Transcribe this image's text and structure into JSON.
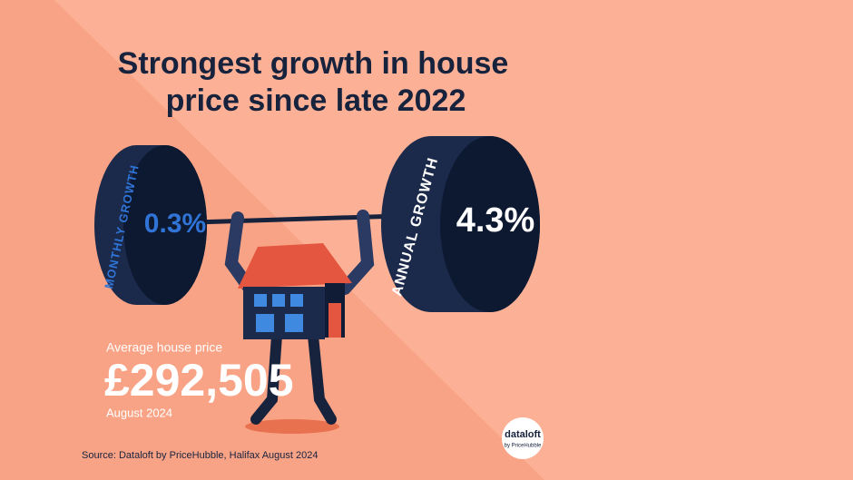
{
  "header": {
    "title_lines": [
      "Strongest growth in house",
      "price since late 2022"
    ]
  },
  "weights": {
    "monthly": {
      "label": "MONTHLY GROWTH",
      "value": "0.3%"
    },
    "annual": {
      "label": "ANNUAL GROWTH",
      "value": "4.3%"
    }
  },
  "price": {
    "label": "Average house price",
    "value": "£292,505",
    "date": "August 2024"
  },
  "source": "Source: Dataloft by PriceHubble, Halifax August 2024",
  "logo": {
    "name": "dataloft",
    "sub": "by PriceHubble"
  }
}
